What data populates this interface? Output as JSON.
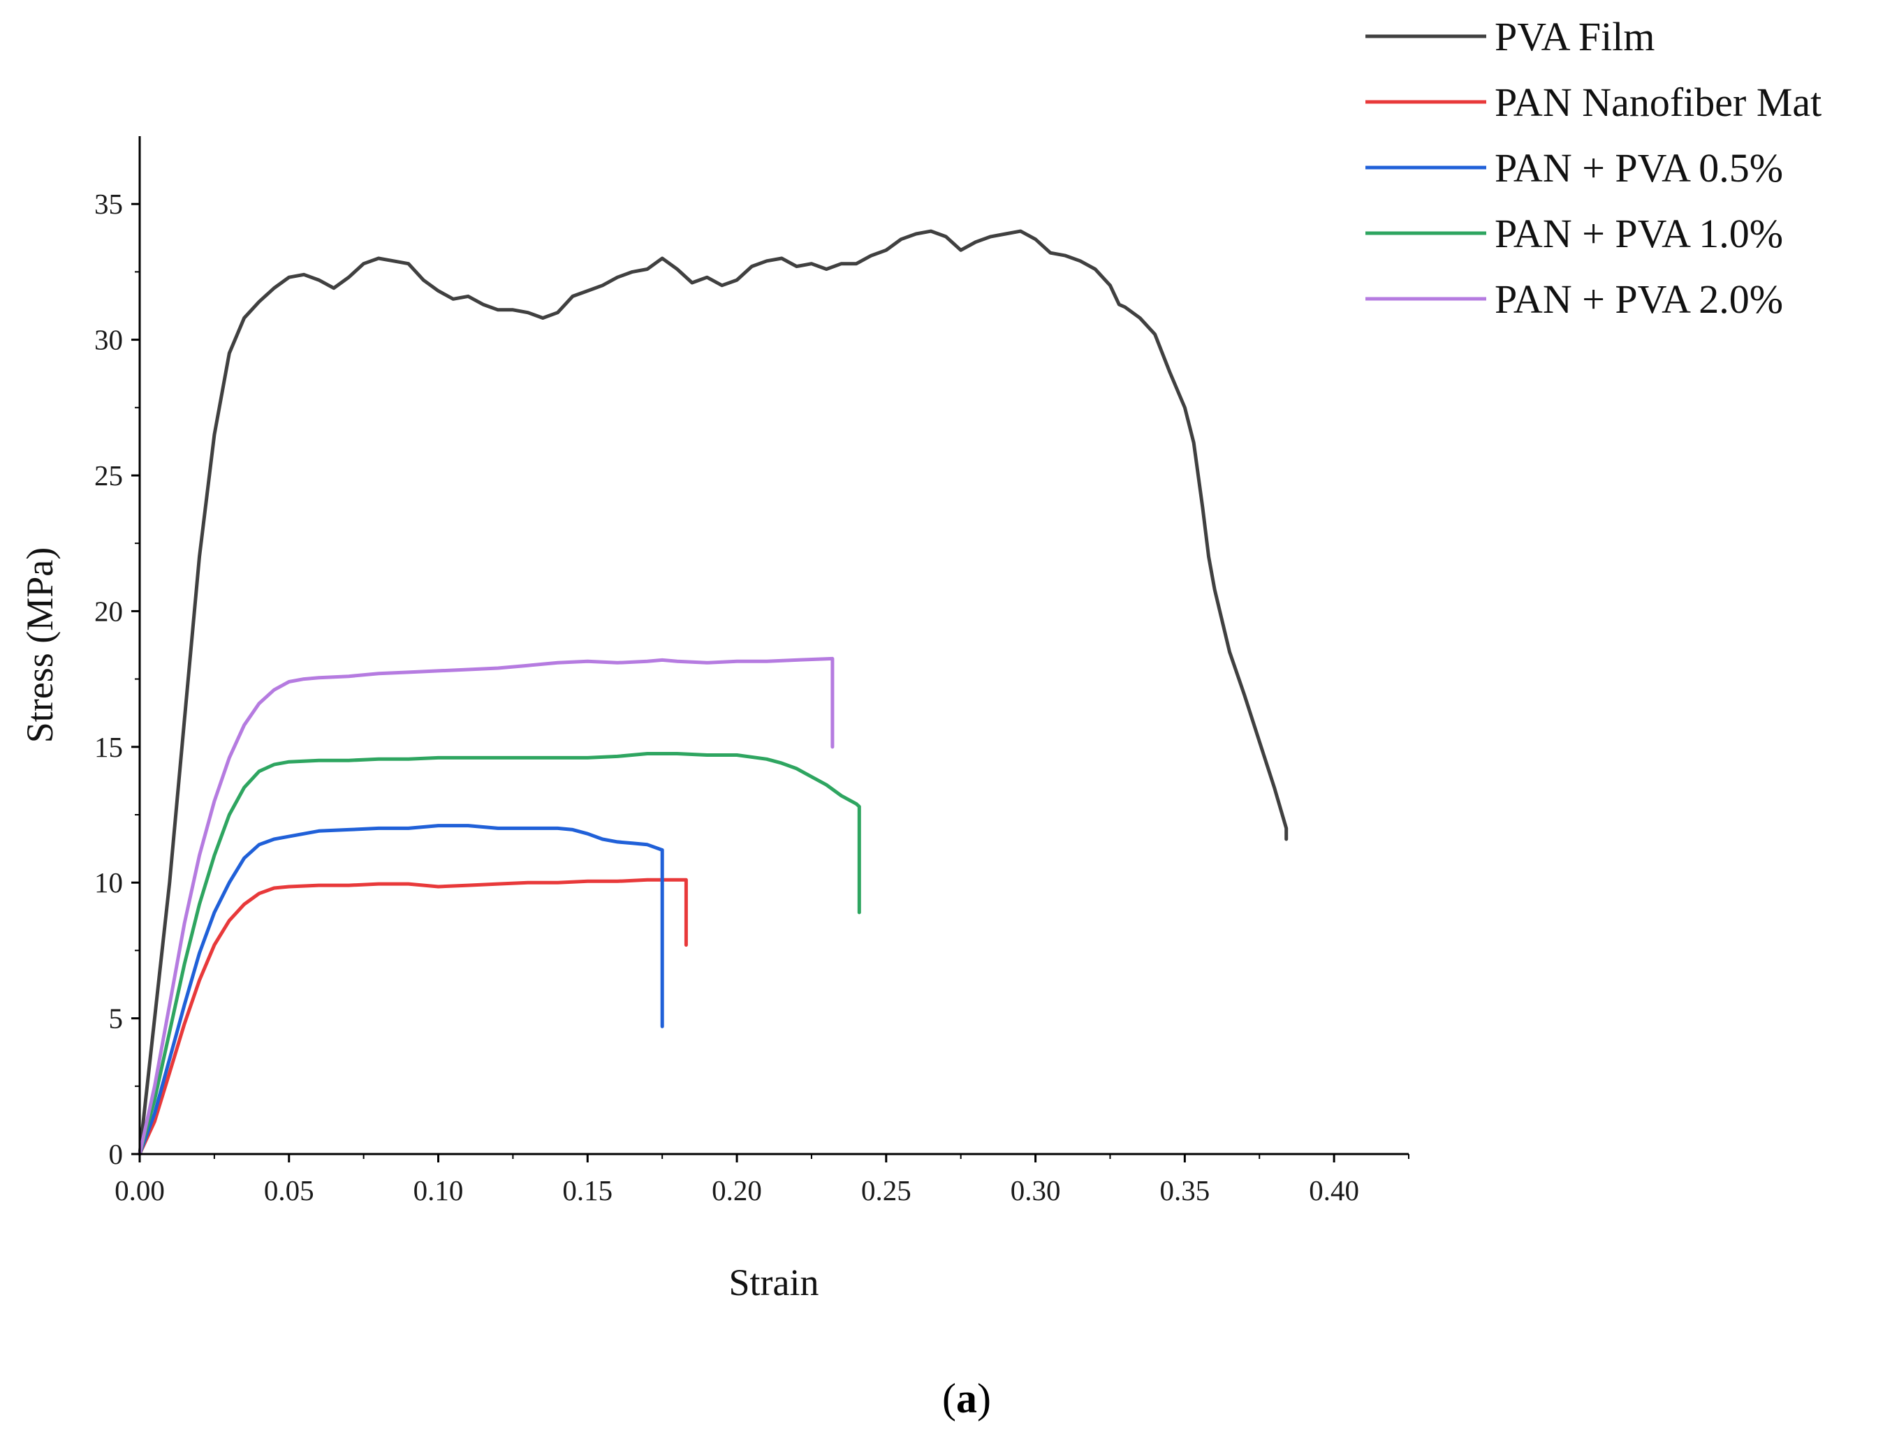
{
  "chart_data": {
    "type": "line",
    "title": "",
    "xlabel": "Strain",
    "ylabel": "Stress (MPa)",
    "xlim": [
      0,
      0.425
    ],
    "ylim": [
      0,
      37.5
    ],
    "x_ticks": [
      0,
      0.05,
      0.1,
      0.15,
      0.2,
      0.25,
      0.3,
      0.35,
      0.4
    ],
    "x_tick_labels": [
      "0.00",
      "0.05",
      "0.10",
      "0.15",
      "0.20",
      "0.25",
      "0.30",
      "0.35",
      "0.40"
    ],
    "y_ticks": [
      0,
      5,
      10,
      15,
      20,
      25,
      30,
      35
    ],
    "y_tick_labels": [
      "0",
      "5",
      "10",
      "15",
      "20",
      "25",
      "30",
      "35"
    ],
    "grid": false,
    "legend_position": "top-right outside",
    "series": [
      {
        "name": "PVA Film",
        "color": "#404040",
        "x": [
          0,
          0.005,
          0.01,
          0.015,
          0.02,
          0.025,
          0.03,
          0.035,
          0.04,
          0.045,
          0.05,
          0.055,
          0.06,
          0.065,
          0.07,
          0.075,
          0.08,
          0.085,
          0.09,
          0.095,
          0.1,
          0.105,
          0.11,
          0.115,
          0.12,
          0.125,
          0.13,
          0.135,
          0.14,
          0.145,
          0.15,
          0.155,
          0.16,
          0.165,
          0.17,
          0.175,
          0.18,
          0.185,
          0.19,
          0.195,
          0.2,
          0.205,
          0.21,
          0.215,
          0.22,
          0.225,
          0.23,
          0.235,
          0.24,
          0.245,
          0.25,
          0.255,
          0.26,
          0.265,
          0.27,
          0.275,
          0.28,
          0.285,
          0.29,
          0.295,
          0.3,
          0.305,
          0.31,
          0.315,
          0.32,
          0.325,
          0.328,
          0.33,
          0.335,
          0.34,
          0.345,
          0.35,
          0.353,
          0.356,
          0.358,
          0.36,
          0.365,
          0.37,
          0.375,
          0.38,
          0.384,
          0.384
        ],
        "values": [
          0,
          5,
          10,
          16,
          22,
          26.5,
          29.5,
          30.8,
          31.4,
          31.9,
          32.3,
          32.4,
          32.2,
          31.9,
          32.3,
          32.8,
          33.0,
          32.9,
          32.8,
          32.2,
          31.8,
          31.5,
          31.6,
          31.3,
          31.1,
          31.1,
          31.0,
          30.8,
          31.0,
          31.6,
          31.8,
          32.0,
          32.3,
          32.5,
          32.6,
          33.0,
          32.6,
          32.1,
          32.3,
          32.0,
          32.2,
          32.7,
          32.9,
          33.0,
          32.7,
          32.8,
          32.6,
          32.8,
          32.8,
          33.1,
          33.3,
          33.7,
          33.9,
          34.0,
          33.8,
          33.3,
          33.6,
          33.8,
          33.9,
          34.0,
          33.7,
          33.2,
          33.1,
          32.9,
          32.6,
          32.0,
          31.3,
          31.2,
          30.8,
          30.2,
          28.8,
          27.5,
          26.2,
          23.8,
          22.0,
          20.8,
          18.5,
          16.9,
          15.2,
          13.5,
          12.0,
          11.6
        ]
      },
      {
        "name": "PAN Nanofiber Mat",
        "color": "#e8393a",
        "x": [
          0,
          0.005,
          0.01,
          0.015,
          0.02,
          0.025,
          0.03,
          0.035,
          0.04,
          0.045,
          0.05,
          0.06,
          0.07,
          0.08,
          0.09,
          0.1,
          0.11,
          0.12,
          0.13,
          0.14,
          0.15,
          0.16,
          0.17,
          0.175,
          0.18,
          0.183,
          0.183
        ],
        "values": [
          0,
          1.2,
          3.0,
          4.8,
          6.4,
          7.7,
          8.6,
          9.2,
          9.6,
          9.8,
          9.85,
          9.9,
          9.9,
          9.95,
          9.95,
          9.85,
          9.9,
          9.95,
          10.0,
          10.0,
          10.05,
          10.05,
          10.1,
          10.1,
          10.1,
          10.1,
          7.7
        ]
      },
      {
        "name": "PAN + PVA 0.5%",
        "color": "#2060d8",
        "x": [
          0,
          0.005,
          0.01,
          0.015,
          0.02,
          0.025,
          0.03,
          0.035,
          0.04,
          0.045,
          0.05,
          0.06,
          0.07,
          0.08,
          0.09,
          0.1,
          0.11,
          0.12,
          0.13,
          0.14,
          0.145,
          0.15,
          0.155,
          0.16,
          0.165,
          0.17,
          0.175,
          0.175
        ],
        "values": [
          0,
          1.5,
          3.5,
          5.5,
          7.4,
          8.9,
          10.0,
          10.9,
          11.4,
          11.6,
          11.7,
          11.9,
          11.95,
          12.0,
          12.0,
          12.1,
          12.1,
          12.0,
          12.0,
          12.0,
          11.95,
          11.8,
          11.6,
          11.5,
          11.45,
          11.4,
          11.2,
          4.7
        ]
      },
      {
        "name": "PAN + PVA 1.0%",
        "color": "#2ea560",
        "x": [
          0,
          0.005,
          0.01,
          0.015,
          0.02,
          0.025,
          0.03,
          0.035,
          0.04,
          0.045,
          0.05,
          0.06,
          0.07,
          0.08,
          0.09,
          0.1,
          0.11,
          0.12,
          0.13,
          0.14,
          0.15,
          0.16,
          0.17,
          0.18,
          0.19,
          0.2,
          0.21,
          0.215,
          0.22,
          0.225,
          0.23,
          0.235,
          0.24,
          0.241,
          0.241
        ],
        "values": [
          0,
          2.0,
          4.5,
          7.0,
          9.2,
          11.0,
          12.5,
          13.5,
          14.1,
          14.35,
          14.45,
          14.5,
          14.5,
          14.55,
          14.55,
          14.6,
          14.6,
          14.6,
          14.6,
          14.6,
          14.6,
          14.65,
          14.75,
          14.75,
          14.7,
          14.7,
          14.55,
          14.4,
          14.2,
          13.9,
          13.6,
          13.2,
          12.9,
          12.8,
          8.9
        ]
      },
      {
        "name": "PAN + PVA 2.0%",
        "color": "#b57be0",
        "x": [
          0,
          0.005,
          0.01,
          0.015,
          0.02,
          0.025,
          0.03,
          0.035,
          0.04,
          0.045,
          0.05,
          0.055,
          0.06,
          0.07,
          0.08,
          0.09,
          0.1,
          0.11,
          0.12,
          0.13,
          0.14,
          0.15,
          0.16,
          0.17,
          0.175,
          0.18,
          0.19,
          0.2,
          0.21,
          0.22,
          0.232,
          0.232
        ],
        "values": [
          0,
          2.5,
          5.5,
          8.5,
          11.0,
          13.0,
          14.6,
          15.8,
          16.6,
          17.1,
          17.4,
          17.5,
          17.55,
          17.6,
          17.7,
          17.75,
          17.8,
          17.85,
          17.9,
          18.0,
          18.1,
          18.15,
          18.1,
          18.15,
          18.2,
          18.15,
          18.1,
          18.15,
          18.15,
          18.2,
          18.25,
          15.0
        ]
      }
    ]
  },
  "figure": {
    "panel_label_open": "(",
    "panel_label_letter": "a",
    "panel_label_close": ")"
  }
}
